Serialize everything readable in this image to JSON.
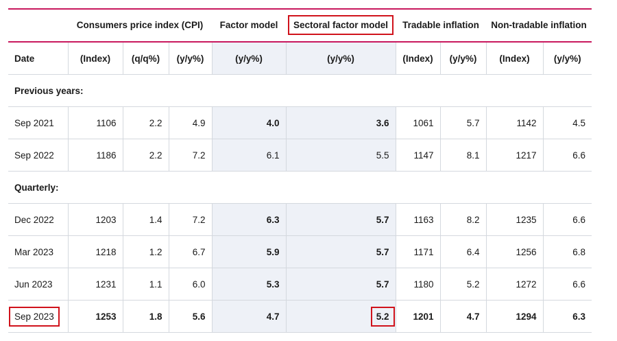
{
  "header": {
    "cpi": "Consumers price index (CPI)",
    "factor_model": "Factor model",
    "sectoral_factor_model": "Sectoral factor model",
    "tradable": "Tradable inflation",
    "non_tradable": "Non-tradable inflation"
  },
  "units": [
    "Date",
    "(Index)",
    "(q/q%)",
    "(y/y%)",
    "(y/y%)",
    "(y/y%)",
    "(Index)",
    "(y/y%)",
    "(Index)",
    "(y/y%)"
  ],
  "sections": {
    "previous": "Previous years:",
    "quarterly": "Quarterly:"
  },
  "rows": [
    [
      "Sep 2021",
      "1106",
      "2.2",
      "4.9",
      "4.0",
      "3.6",
      "1061",
      "5.7",
      "1142",
      "4.5"
    ],
    [
      "Sep 2022",
      "1186",
      "2.2",
      "7.2",
      "6.1",
      "5.5",
      "1147",
      "8.1",
      "1217",
      "6.6"
    ],
    [
      "Dec 2022",
      "1203",
      "1.4",
      "7.2",
      "6.3",
      "5.7",
      "1163",
      "8.2",
      "1235",
      "6.6"
    ],
    [
      "Mar 2023",
      "1218",
      "1.2",
      "6.7",
      "5.9",
      "5.7",
      "1171",
      "6.4",
      "1256",
      "6.8"
    ],
    [
      "Jun 2023",
      "1231",
      "1.1",
      "6.0",
      "5.3",
      "5.7",
      "1180",
      "5.2",
      "1272",
      "6.6"
    ],
    [
      "Sep 2023",
      "1253",
      "1.8",
      "5.6",
      "4.7",
      "5.2",
      "1201",
      "4.7",
      "1294",
      "6.3"
    ]
  ],
  "colors": {
    "accent": "#c8175d",
    "highlight_box": "#d0121b",
    "model_column_bg": "#eef1f7"
  }
}
